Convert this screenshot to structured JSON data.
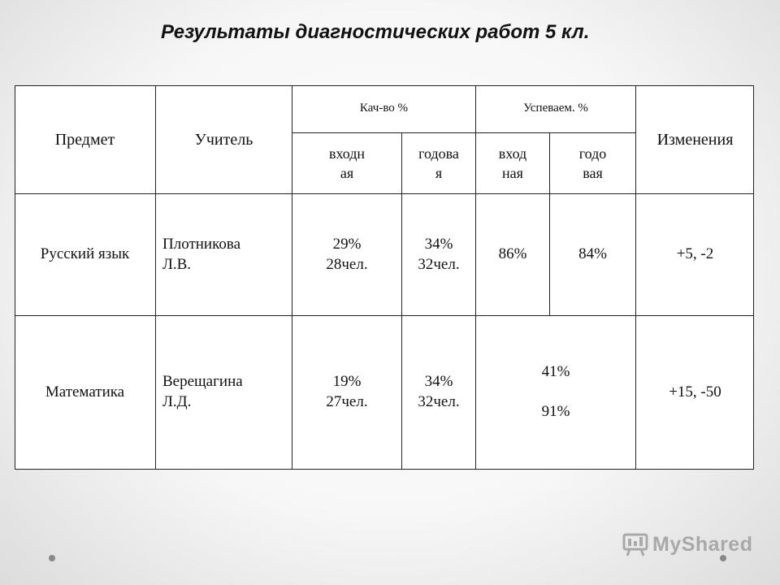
{
  "title": "Результаты  диагностических работ 5 кл.",
  "table": {
    "headers": {
      "subject": "Предмет",
      "teacher": "Учитель",
      "quality": "Кач-во %",
      "progress": "Успеваем. %",
      "changes": "Изменения",
      "quality_in": "входн\nая",
      "quality_year": "годова\nя",
      "progress_in": "вход\nная",
      "progress_year": "годо\nвая"
    },
    "rows": [
      {
        "subject": "Русский язык",
        "teacher": "Плотникова\nЛ.В.",
        "quality_in": "29%\n28чел.",
        "quality_year": "34%\n32чел.",
        "progress_in": "86%",
        "progress_year": "84%",
        "changes": "+5, -2"
      },
      {
        "subject": "Математика",
        "teacher": "Верещагина\nЛ.Д.",
        "quality_in": "19%\n27чел.",
        "quality_year": "34%\n32чел.",
        "progress_merged": "41%\n\n91%",
        "changes": "+15, -50"
      }
    ]
  },
  "watermark": {
    "brand": "MyShared",
    "icon": "presentation-board-icon"
  }
}
